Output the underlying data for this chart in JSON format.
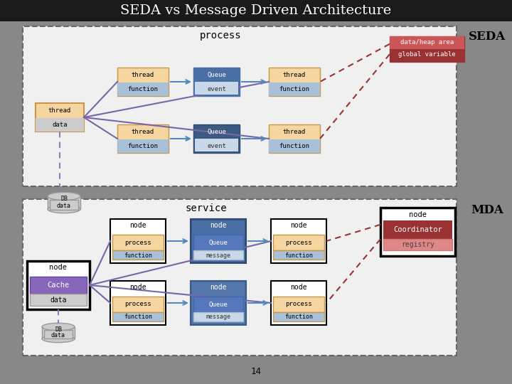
{
  "title": "SEDA vs Message Driven Architecture",
  "title_bg": "#1a1a1a",
  "title_color": "#ffffff",
  "bg_color": "#888888",
  "page_number": "14",
  "seda_label": "SEDA",
  "mda_label": "MDA",
  "seda_process_label": "process",
  "seda_data_heap_label1": "data/heap area",
  "seda_data_heap_label2": "global variable",
  "mda_service_label": "service",
  "mda_coordinator_label": "Coordinator",
  "mda_registry_label": "registry",
  "orange_light": "#f5d5a0",
  "orange_border": "#c8964a",
  "blue_dark": "#4a6fa5",
  "blue_light": "#a8c0d8",
  "blue_medium": "#6688aa",
  "red_dark": "#993333",
  "red_medium": "#cc5555",
  "red_light": "#e08888",
  "purple_line": "#7766aa",
  "blue_arrow": "#5588bb",
  "red_arrow": "#993333",
  "gray_data": "#cccccc",
  "white": "#ffffff",
  "black": "#000000",
  "dashed_border": "#555555",
  "cache_purple": "#8866bb",
  "inner_bg": "#f0f0f0"
}
